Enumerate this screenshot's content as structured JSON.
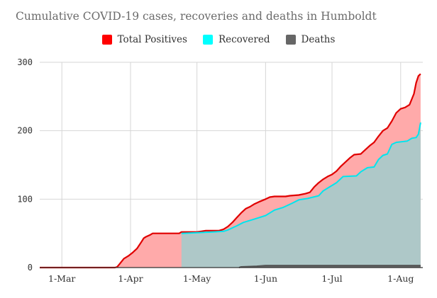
{
  "chart_data": {
    "type": "area",
    "title": "Cumulative COVID-19 cases, recoveries and deaths in Humboldt",
    "xlabel": "",
    "ylabel": "",
    "x_type": "date",
    "x_range": [
      "2020-02-20",
      "2020-08-11"
    ],
    "ylim": [
      0,
      300
    ],
    "y_ticks": [
      0,
      100,
      200,
      300
    ],
    "x_ticks": [
      {
        "date": "2020-03-01",
        "label": "1-Mar"
      },
      {
        "date": "2020-04-01",
        "label": "1-Apr"
      },
      {
        "date": "2020-05-01",
        "label": "1-May"
      },
      {
        "date": "2020-06-01",
        "label": "1-Jun"
      },
      {
        "date": "2020-07-01",
        "label": "1-Jul"
      },
      {
        "date": "2020-08-01",
        "label": "1-Aug"
      }
    ],
    "grid": true,
    "legend_position": "top-center",
    "series": [
      {
        "name": "Total Positives",
        "line_color": "#e00000",
        "fill_color": "#ffaaaa",
        "points": [
          [
            "2020-02-20",
            0
          ],
          [
            "2020-03-25",
            0
          ],
          [
            "2020-03-26",
            1
          ],
          [
            "2020-03-27",
            5
          ],
          [
            "2020-03-28",
            9
          ],
          [
            "2020-03-29",
            13
          ],
          [
            "2020-03-31",
            17
          ],
          [
            "2020-04-02",
            22
          ],
          [
            "2020-04-04",
            28
          ],
          [
            "2020-04-06",
            38
          ],
          [
            "2020-04-07",
            43
          ],
          [
            "2020-04-08",
            45
          ],
          [
            "2020-04-10",
            48
          ],
          [
            "2020-04-11",
            50
          ],
          [
            "2020-04-23",
            50
          ],
          [
            "2020-04-24",
            52
          ],
          [
            "2020-05-01",
            52
          ],
          [
            "2020-05-03",
            53
          ],
          [
            "2020-05-05",
            54
          ],
          [
            "2020-05-11",
            54
          ],
          [
            "2020-05-13",
            56
          ],
          [
            "2020-05-15",
            60
          ],
          [
            "2020-05-17",
            66
          ],
          [
            "2020-05-19",
            73
          ],
          [
            "2020-05-21",
            80
          ],
          [
            "2020-05-23",
            86
          ],
          [
            "2020-05-25",
            89
          ],
          [
            "2020-05-27",
            93
          ],
          [
            "2020-05-29",
            96
          ],
          [
            "2020-06-01",
            100
          ],
          [
            "2020-06-03",
            103
          ],
          [
            "2020-06-05",
            104
          ],
          [
            "2020-06-10",
            104
          ],
          [
            "2020-06-12",
            105
          ],
          [
            "2020-06-16",
            106
          ],
          [
            "2020-06-19",
            108
          ],
          [
            "2020-06-21",
            110
          ],
          [
            "2020-06-23",
            118
          ],
          [
            "2020-06-25",
            124
          ],
          [
            "2020-06-27",
            129
          ],
          [
            "2020-06-29",
            133
          ],
          [
            "2020-07-01",
            136
          ],
          [
            "2020-07-03",
            141
          ],
          [
            "2020-07-05",
            148
          ],
          [
            "2020-07-07",
            154
          ],
          [
            "2020-07-09",
            160
          ],
          [
            "2020-07-11",
            165
          ],
          [
            "2020-07-14",
            166
          ],
          [
            "2020-07-16",
            172
          ],
          [
            "2020-07-18",
            178
          ],
          [
            "2020-07-20",
            183
          ],
          [
            "2020-07-22",
            192
          ],
          [
            "2020-07-24",
            200
          ],
          [
            "2020-07-26",
            204
          ],
          [
            "2020-07-28",
            214
          ],
          [
            "2020-07-30",
            226
          ],
          [
            "2020-08-01",
            232
          ],
          [
            "2020-08-03",
            234
          ],
          [
            "2020-08-05",
            238
          ],
          [
            "2020-08-07",
            254
          ],
          [
            "2020-08-08",
            270
          ],
          [
            "2020-08-09",
            280
          ],
          [
            "2020-08-10",
            283
          ]
        ]
      },
      {
        "name": "Recovered",
        "line_color": "#00e5ee",
        "fill_color": "#aec8c8",
        "points": [
          [
            "2020-04-24",
            50
          ],
          [
            "2020-05-01",
            51
          ],
          [
            "2020-05-08",
            52
          ],
          [
            "2020-05-13",
            53
          ],
          [
            "2020-05-15",
            55
          ],
          [
            "2020-05-17",
            58
          ],
          [
            "2020-05-19",
            61
          ],
          [
            "2020-05-22",
            66
          ],
          [
            "2020-05-27",
            71
          ],
          [
            "2020-06-01",
            76
          ],
          [
            "2020-06-03",
            80
          ],
          [
            "2020-06-05",
            84
          ],
          [
            "2020-06-09",
            88
          ],
          [
            "2020-06-13",
            94
          ],
          [
            "2020-06-16",
            99
          ],
          [
            "2020-06-20",
            101
          ],
          [
            "2020-06-25",
            105
          ],
          [
            "2020-06-27",
            112
          ],
          [
            "2020-06-30",
            118
          ],
          [
            "2020-07-03",
            124
          ],
          [
            "2020-07-06",
            133
          ],
          [
            "2020-07-12",
            134
          ],
          [
            "2020-07-14",
            140
          ],
          [
            "2020-07-17",
            146
          ],
          [
            "2020-07-20",
            147
          ],
          [
            "2020-07-22",
            158
          ],
          [
            "2020-07-24",
            164
          ],
          [
            "2020-07-26",
            166
          ],
          [
            "2020-07-28",
            180
          ],
          [
            "2020-07-30",
            183
          ],
          [
            "2020-08-04",
            185
          ],
          [
            "2020-08-06",
            189
          ],
          [
            "2020-08-08",
            190
          ],
          [
            "2020-08-09",
            195
          ],
          [
            "2020-08-10",
            212
          ]
        ]
      },
      {
        "name": "Deaths",
        "line_color": "#555555",
        "fill_color": "#666666",
        "points": [
          [
            "2020-05-20",
            0
          ],
          [
            "2020-05-21",
            1
          ],
          [
            "2020-05-28",
            2
          ],
          [
            "2020-06-01",
            3
          ],
          [
            "2020-08-10",
            3
          ]
        ]
      }
    ]
  }
}
